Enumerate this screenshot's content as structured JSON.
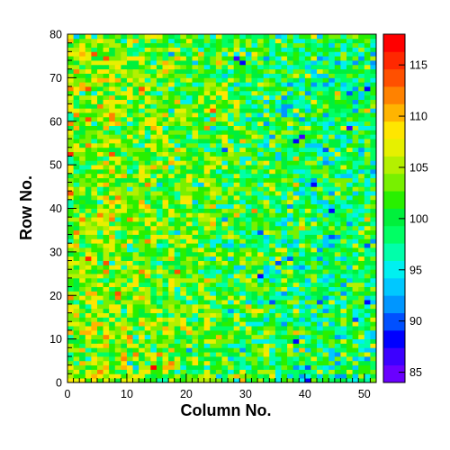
{
  "chart_data": {
    "type": "heatmap",
    "title": "",
    "xlabel": "Column No.",
    "ylabel": "Row No.",
    "x_range": [
      0,
      52
    ],
    "y_range": [
      0,
      80
    ],
    "x_bins": 52,
    "y_bins": 80,
    "x_ticks": [
      "0",
      "10",
      "20",
      "30",
      "40",
      "50"
    ],
    "y_ticks": [
      "0",
      "10",
      "20",
      "30",
      "40",
      "50",
      "60",
      "70",
      "80"
    ],
    "colorbar": {
      "range": [
        84,
        118
      ],
      "ticks": [
        "85",
        "90",
        "95",
        "100",
        "105",
        "110",
        "115"
      ],
      "palette": [
        "#6a00ff",
        "#3c00ff",
        "#0000ff",
        "#0050ff",
        "#0096ff",
        "#00c8ff",
        "#00f0f0",
        "#00ffaa",
        "#00ff64",
        "#00f03c",
        "#28f000",
        "#78f000",
        "#b4f000",
        "#e6f000",
        "#ffe600",
        "#ffb400",
        "#ff8200",
        "#ff5000",
        "#ff2800",
        "#ff0000"
      ]
    },
    "values_description_note": "",
    "mean_by_region": {
      "left_columns_0_25": 104,
      "right_columns_26_52": 99,
      "spread": 4
    },
    "low_spots": [
      {
        "x": 28.5,
        "y": 74.5,
        "value": 87
      },
      {
        "x": 29.5,
        "y": 73.5,
        "value": 88
      },
      {
        "x": 39.5,
        "y": 56.5,
        "value": 86
      },
      {
        "x": 38.5,
        "y": 55.5,
        "value": 88
      },
      {
        "x": 41.5,
        "y": 45.5,
        "value": 89
      },
      {
        "x": 32.5,
        "y": 24.5,
        "value": 88
      },
      {
        "x": 38.5,
        "y": 9.5,
        "value": 89
      },
      {
        "x": 26.5,
        "y": 53.5,
        "value": 90
      },
      {
        "x": 44.5,
        "y": 33.5,
        "value": 90
      }
    ],
    "high_spots": [
      {
        "x": 14.5,
        "y": 3.5,
        "value": 117
      },
      {
        "x": 0.5,
        "y": 52.5,
        "value": 115
      },
      {
        "x": 0.5,
        "y": 43.5,
        "value": 114
      },
      {
        "x": 6.5,
        "y": 27.5,
        "value": 114
      }
    ]
  }
}
